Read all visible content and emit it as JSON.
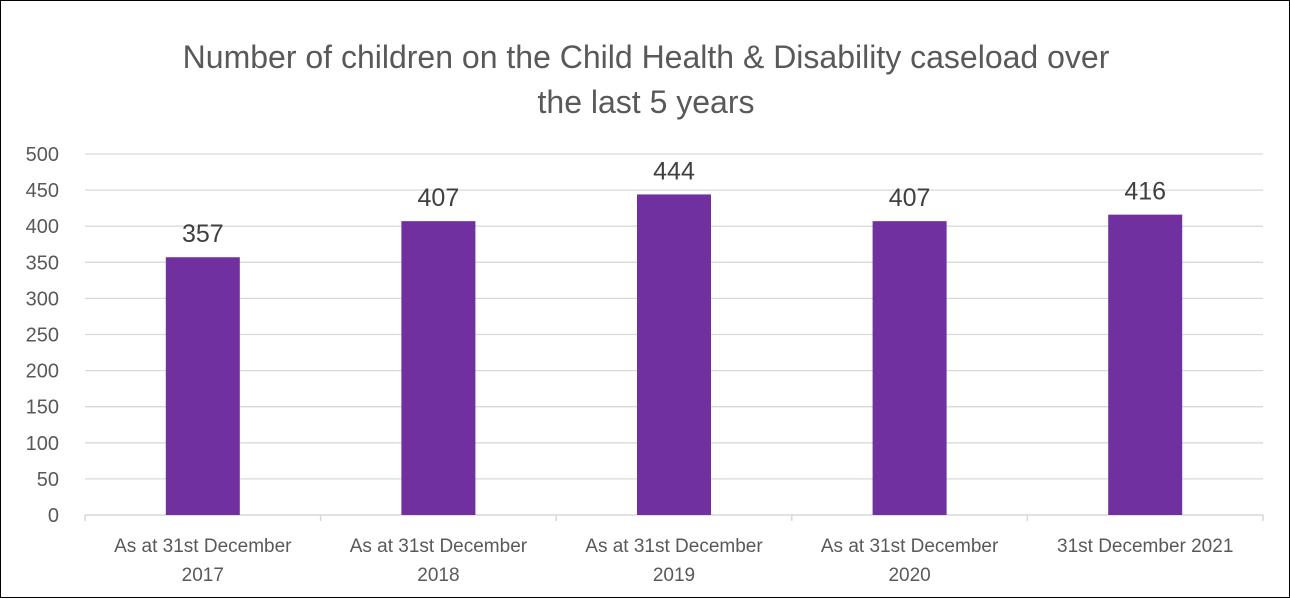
{
  "chart_data": {
    "type": "bar",
    "title": "Number of children on the Child Health & Disability caseload over the last 5 years",
    "title_lines": [
      "Number of children on the Child Health & Disability caseload over",
      "the last 5 years"
    ],
    "categories": [
      [
        "As at 31st December",
        "2017"
      ],
      [
        "As at 31st December",
        "2018"
      ],
      [
        "As at 31st December",
        "2019"
      ],
      [
        "As at 31st December",
        "2020"
      ],
      [
        "31st December 2021"
      ]
    ],
    "values": [
      357,
      407,
      444,
      407,
      416
    ],
    "data_labels": [
      "357",
      "407",
      "444",
      "407",
      "416"
    ],
    "y_ticks": [
      "0",
      "50",
      "100",
      "150",
      "200",
      "250",
      "300",
      "350",
      "400",
      "450",
      "500"
    ],
    "ylim": [
      0,
      500
    ],
    "xlabel": "",
    "ylabel": "",
    "grid": true,
    "legend": "none",
    "bar_color": "#7030A0",
    "grid_color": "#D9D9D9",
    "text_color": "#595959"
  }
}
